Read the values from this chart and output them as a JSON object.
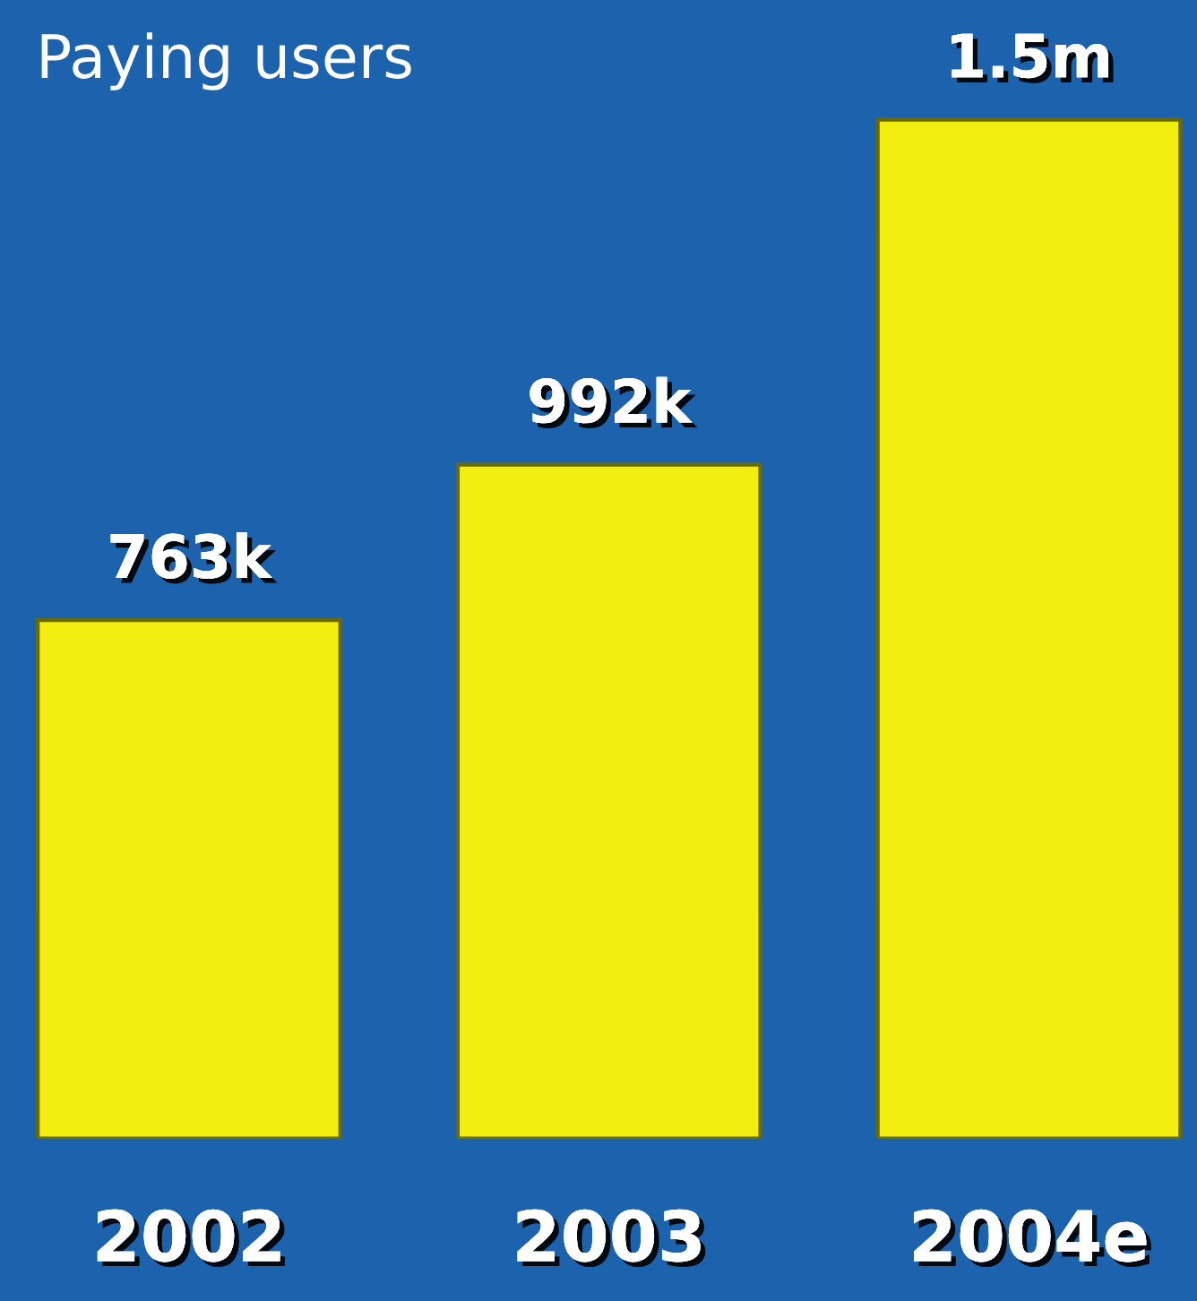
{
  "chart_data": {
    "type": "bar",
    "title": "Paying users",
    "categories": [
      "2002",
      "2003",
      "2004e"
    ],
    "values": [
      763000,
      992000,
      1500000
    ],
    "value_labels": [
      "763k",
      "992k",
      "1.5m"
    ],
    "color": "#f2ee10",
    "grid": false,
    "legend": false
  }
}
